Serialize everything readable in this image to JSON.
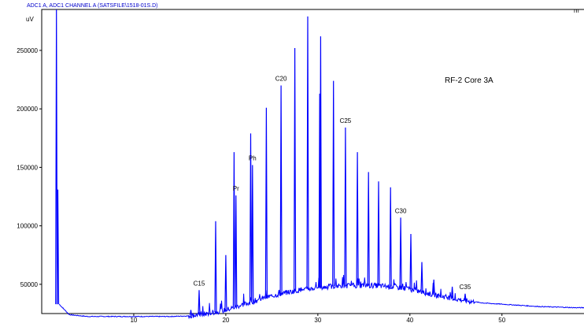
{
  "chart_data": {
    "type": "line",
    "header": "ADC1 A, ADC1 CHANNEL A (SATSFILE\\1518-01S.D)",
    "ylabel": "uV",
    "xlabel": "m",
    "xlim": [
      0,
      59
    ],
    "ylim": [
      25000,
      285000
    ],
    "x_ticks": [
      10,
      20,
      30,
      40,
      50
    ],
    "x_tick_labels": [
      "10",
      "20",
      "30",
      "40",
      "50"
    ],
    "y_ticks": [
      50000,
      100000,
      150000,
      200000,
      250000
    ],
    "y_tick_labels": [
      "50000",
      "100000",
      "150000",
      "200000",
      "250000"
    ],
    "sample_label": "RF-2  Core 3A",
    "line_color": "#0000ff",
    "baseline": [
      [
        1.9,
        33000
      ],
      [
        3,
        24000
      ],
      [
        5,
        22500
      ],
      [
        10,
        22500
      ],
      [
        14,
        22500
      ],
      [
        16,
        23000
      ],
      [
        18,
        25000
      ],
      [
        20,
        28000
      ],
      [
        22,
        33000
      ],
      [
        24,
        38000
      ],
      [
        26,
        42000
      ],
      [
        28,
        45000
      ],
      [
        30,
        47000
      ],
      [
        32,
        48500
      ],
      [
        34,
        49000
      ],
      [
        36,
        49000
      ],
      [
        38,
        48000
      ],
      [
        40,
        46000
      ],
      [
        42,
        42000
      ],
      [
        44,
        39000
      ],
      [
        46,
        36000
      ],
      [
        48,
        34000
      ],
      [
        50,
        33000
      ],
      [
        52,
        32000
      ],
      [
        54,
        31000
      ],
      [
        56,
        30500
      ],
      [
        58,
        30000
      ],
      [
        59,
        30000
      ]
    ],
    "peaks": [
      {
        "x": 1.6,
        "y": 285000
      },
      {
        "x": 1.75,
        "y": 131000
      },
      {
        "x": 16.2,
        "y": 28000
      },
      {
        "x": 17.1,
        "y": 45000
      },
      {
        "x": 18.9,
        "y": 104000
      },
      {
        "x": 20.0,
        "y": 75000
      },
      {
        "x": 20.9,
        "y": 163000
      },
      {
        "x": 21.1,
        "y": 126000
      },
      {
        "x": 22.7,
        "y": 179000
      },
      {
        "x": 22.9,
        "y": 152000
      },
      {
        "x": 24.4,
        "y": 201000
      },
      {
        "x": 26.0,
        "y": 220000
      },
      {
        "x": 27.5,
        "y": 252000
      },
      {
        "x": 28.9,
        "y": 279000
      },
      {
        "x": 30.3,
        "y": 262000
      },
      {
        "x": 30.2,
        "y": 213000
      },
      {
        "x": 31.7,
        "y": 224000
      },
      {
        "x": 33.0,
        "y": 184000
      },
      {
        "x": 34.3,
        "y": 163000
      },
      {
        "x": 35.5,
        "y": 146000
      },
      {
        "x": 36.6,
        "y": 138000
      },
      {
        "x": 37.9,
        "y": 133000
      },
      {
        "x": 39.0,
        "y": 107000
      },
      {
        "x": 40.1,
        "y": 93000
      },
      {
        "x": 41.3,
        "y": 69000
      },
      {
        "x": 42.6,
        "y": 54000
      },
      {
        "x": 44.6,
        "y": 48000
      },
      {
        "x": 46.0,
        "y": 42000
      }
    ],
    "annotations": [
      {
        "text": "C15",
        "x": 17.1,
        "y": 45000
      },
      {
        "text": "Pr",
        "x": 21.1,
        "y": 126000
      },
      {
        "text": "Ph",
        "x": 22.9,
        "y": 152000
      },
      {
        "text": "C20",
        "x": 26.0,
        "y": 220000
      },
      {
        "text": "C25",
        "x": 33.0,
        "y": 184000
      },
      {
        "text": "C30",
        "x": 39.0,
        "y": 107000
      },
      {
        "text": "C35",
        "x": 46.0,
        "y": 42000
      }
    ]
  }
}
